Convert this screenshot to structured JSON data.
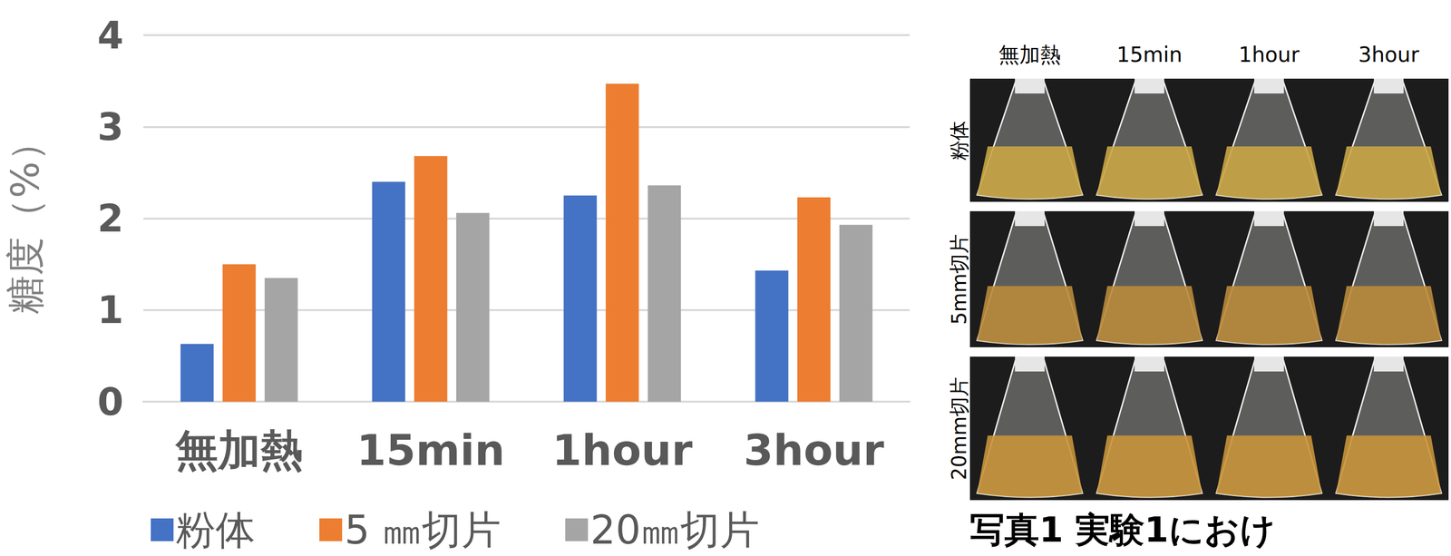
{
  "chart_data": {
    "type": "bar",
    "y_label": "糖度（%）",
    "categories": [
      "無加熱",
      "15min",
      "1hour",
      "3hour"
    ],
    "series": [
      {
        "name": "粉体",
        "color": "#4472c4",
        "values": [
          0.63,
          2.4,
          2.25,
          1.43
        ]
      },
      {
        "name": "5 ㎜切片",
        "color": "#ed7d31",
        "values": [
          1.5,
          2.68,
          3.47,
          2.23
        ]
      },
      {
        "name": "20㎜切片",
        "color": "#a5a5a5",
        "values": [
          1.35,
          2.06,
          2.36,
          1.93
        ]
      }
    ],
    "ylim": [
      0,
      4
    ],
    "yticks": [
      0,
      1,
      2,
      3,
      4
    ],
    "grid": true,
    "legend": "bottom"
  },
  "photo": {
    "columns": [
      "無加熱",
      "15min",
      "1hour",
      "3hour"
    ],
    "rows": [
      "粉体",
      "5mm切片",
      "20mm切片"
    ],
    "caption": "写真1 実験1におけ"
  }
}
